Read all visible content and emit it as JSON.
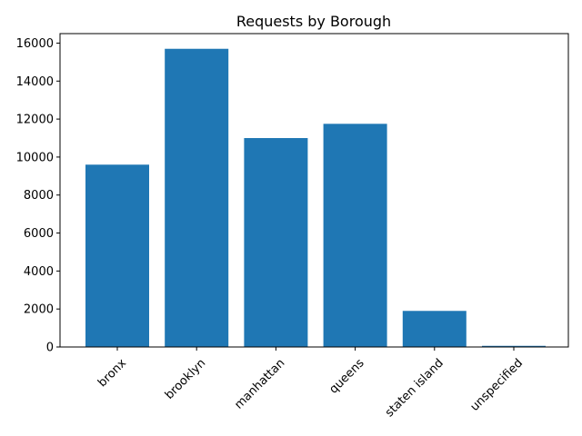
{
  "chart_data": {
    "type": "bar",
    "title": "Requests by Borough",
    "xlabel": "",
    "ylabel": "",
    "categories": [
      "bronx",
      "brooklyn",
      "manhattan",
      "queens",
      "staten island",
      "unspecified"
    ],
    "values": [
      9600,
      15700,
      11000,
      11750,
      1900,
      60
    ],
    "ylim": [
      0,
      16500
    ],
    "yticks": [
      0,
      2000,
      4000,
      6000,
      8000,
      10000,
      12000,
      14000,
      16000
    ],
    "bar_color": "#1f77b4",
    "grid": false,
    "legend": "none",
    "xtick_rotation": 45
  }
}
